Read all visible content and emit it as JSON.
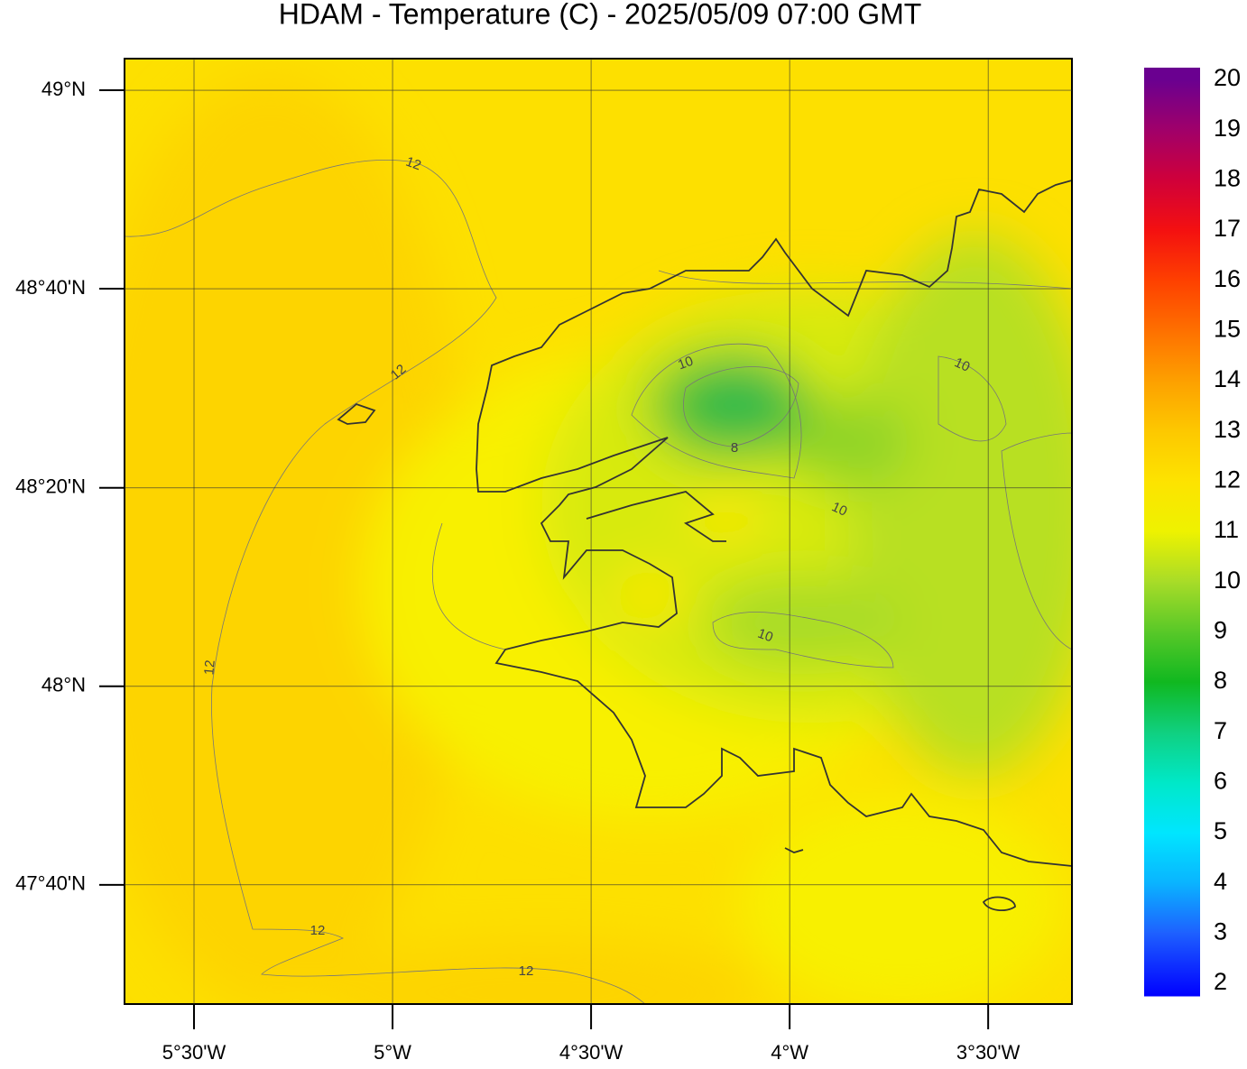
{
  "chart_data": {
    "type": "map",
    "title": "HDAM - Temperature (C)  -  2025/05/09  07:00 GMT",
    "xlim": [
      -5.675,
      -3.289
    ],
    "ylim": [
      47.467,
      49.053
    ],
    "xticks": [
      {
        "value": -5.5,
        "label": "5°30'W"
      },
      {
        "value": -5,
        "label": "5°W"
      },
      {
        "value": -4.5,
        "label": "4°30'W"
      },
      {
        "value": -4,
        "label": "4°W"
      },
      {
        "value": -3.5,
        "label": "3°30'W"
      }
    ],
    "yticks": [
      {
        "value": 49,
        "label": "49°N"
      },
      {
        "value": 48.667,
        "label": "48°40'N"
      },
      {
        "value": 48.333,
        "label": "48°20'N"
      },
      {
        "value": 48,
        "label": "48°N"
      },
      {
        "value": 47.667,
        "label": "47°40'N"
      }
    ],
    "grid": true,
    "colorbar": {
      "lim": [
        2,
        20
      ],
      "ticks": [
        2,
        3,
        4,
        5,
        6,
        7,
        8,
        9,
        10,
        11,
        12,
        13,
        14,
        15,
        16,
        17,
        18,
        19,
        20
      ],
      "colors": [
        "#0000ff",
        "#1e60ff",
        "#0ab4ff",
        "#00e6ff",
        "#00e8c8",
        "#10d080",
        "#10b820",
        "#58c828",
        "#a8dc28",
        "#eef200",
        "#fde300",
        "#fdc800",
        "#fda000",
        "#fe7000",
        "#fe4000",
        "#f41010",
        "#d0003a",
        "#a0006a",
        "#6a0090"
      ]
    },
    "contour_labels": [
      "12",
      "12",
      "12",
      "12",
      "12",
      "10",
      "10",
      "10",
      "10",
      "8"
    ]
  }
}
